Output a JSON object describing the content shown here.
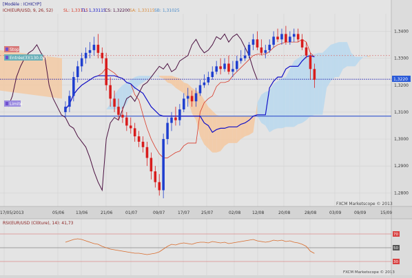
{
  "header": {
    "model_label": "[Modèle : ICHICYP]",
    "indicator_label": "ICH(EUR/USD, 9, 26, 52)",
    "sl": "SL: 1,33115",
    "tl": "TL: 1,33115",
    "cs": "CS: 1,32200",
    "sa": "SA: 1,33115",
    "sb": "SB: 1,31025"
  },
  "badges": {
    "stop": "Stop",
    "entry": "Entrée(3)(130.00)",
    "limit": "Limite",
    "current_price": "1,3220"
  },
  "price_axis": {
    "ticks": [
      "1,3400",
      "1,3300",
      "1,3200",
      "1,3100",
      "1,3000",
      "1,2900",
      "1,2800"
    ],
    "tick_values": [
      1.34,
      1.33,
      1.32,
      1.31,
      1.3,
      1.29,
      1.28
    ]
  },
  "date_axis": {
    "ticks": [
      "17/05/2013",
      "05/06",
      "13/06",
      "21/06",
      "01/07",
      "09/07",
      "17/07",
      "25/07",
      "02/08",
      "12/08",
      "20/08",
      "28/08",
      "03/09",
      "09/09",
      "15/09"
    ]
  },
  "footer": {
    "watermark_main": "FXCM Marketscope © 2013",
    "watermark_sub": "FXCM Marketscope © 2013"
  },
  "rsi": {
    "label": "RSI(EUR/USD (Clôture), 14): 41,73",
    "ticks": [
      "70",
      "50",
      "30"
    ],
    "tick_values": [
      70,
      50,
      30
    ]
  },
  "colors": {
    "background": "#d6d6d6",
    "up_candle": "#1f3fcf",
    "down_candle": "#d81c1c",
    "cloud_bull": "#b8d8ee",
    "cloud_bear": "#f4c8a0",
    "tenkan": "#d83a2a",
    "kijun": "#1010c8",
    "chikou": "#4a1040",
    "stop_badge": "#d87a7a",
    "entry_badge": "#6ab0b8",
    "limit_badge": "#9a8ae0",
    "current_badge": "#2a5ad8"
  },
  "chart_data": [
    {
      "type": "candlestick",
      "title": "EUR/USD",
      "ylim": [
        1.276,
        1.346
      ],
      "x": [
        "05/06",
        "06/06",
        "07/06",
        "10/06",
        "11/06",
        "12/06",
        "13/06",
        "14/06",
        "17/06",
        "18/06",
        "19/06",
        "20/06",
        "21/06",
        "24/06",
        "25/06",
        "26/06",
        "27/06",
        "28/06",
        "01/07",
        "02/07",
        "03/07",
        "04/07",
        "05/07",
        "08/07",
        "09/07",
        "10/07",
        "11/07",
        "12/07",
        "15/07",
        "16/07",
        "17/07",
        "18/07",
        "19/07",
        "22/07",
        "23/07",
        "24/07",
        "25/07",
        "26/07",
        "29/07",
        "30/07",
        "31/07",
        "01/08",
        "02/08",
        "05/08",
        "06/08",
        "07/08",
        "08/08",
        "09/08",
        "12/08",
        "13/08",
        "14/08",
        "15/08",
        "16/08",
        "19/08",
        "20/08",
        "21/08",
        "22/08",
        "23/08",
        "26/08",
        "27/08",
        "28/08",
        "29/08"
      ],
      "open": [
        1.31,
        1.312,
        1.316,
        1.323,
        1.327,
        1.33,
        1.332,
        1.333,
        1.335,
        1.332,
        1.33,
        1.32,
        1.315,
        1.312,
        1.309,
        1.308,
        1.305,
        1.304,
        1.301,
        1.299,
        1.297,
        1.293,
        1.288,
        1.284,
        1.281,
        1.3,
        1.306,
        1.308,
        1.307,
        1.311,
        1.315,
        1.316,
        1.314,
        1.317,
        1.32,
        1.321,
        1.323,
        1.325,
        1.327,
        1.326,
        1.328,
        1.325,
        1.326,
        1.329,
        1.33,
        1.331,
        1.335,
        1.337,
        1.334,
        1.332,
        1.333,
        1.335,
        1.338,
        1.337,
        1.339,
        1.336,
        1.338,
        1.339,
        1.337,
        1.334,
        1.331,
        1.326
      ],
      "high": [
        1.314,
        1.318,
        1.325,
        1.329,
        1.332,
        1.334,
        1.336,
        1.338,
        1.339,
        1.334,
        1.332,
        1.323,
        1.318,
        1.315,
        1.312,
        1.31,
        1.308,
        1.306,
        1.303,
        1.301,
        1.299,
        1.295,
        1.29,
        1.287,
        1.302,
        1.308,
        1.31,
        1.312,
        1.313,
        1.317,
        1.319,
        1.318,
        1.319,
        1.322,
        1.324,
        1.325,
        1.327,
        1.329,
        1.33,
        1.33,
        1.331,
        1.329,
        1.331,
        1.333,
        1.334,
        1.336,
        1.339,
        1.34,
        1.337,
        1.335,
        1.337,
        1.34,
        1.341,
        1.341,
        1.342,
        1.34,
        1.341,
        1.341,
        1.339,
        1.336,
        1.332,
        1.328
      ],
      "low": [
        1.308,
        1.31,
        1.314,
        1.321,
        1.325,
        1.328,
        1.33,
        1.331,
        1.33,
        1.328,
        1.318,
        1.312,
        1.31,
        1.307,
        1.306,
        1.303,
        1.302,
        1.299,
        1.297,
        1.295,
        1.29,
        1.285,
        1.282,
        1.279,
        1.278,
        1.298,
        1.303,
        1.305,
        1.305,
        1.31,
        1.312,
        1.312,
        1.312,
        1.316,
        1.319,
        1.32,
        1.322,
        1.324,
        1.324,
        1.325,
        1.324,
        1.323,
        1.325,
        1.328,
        1.329,
        1.33,
        1.333,
        1.333,
        1.331,
        1.33,
        1.332,
        1.334,
        1.336,
        1.335,
        1.335,
        1.335,
        1.336,
        1.336,
        1.333,
        1.33,
        1.322,
        1.319
      ],
      "close": [
        1.312,
        1.316,
        1.323,
        1.327,
        1.33,
        1.332,
        1.333,
        1.335,
        1.332,
        1.33,
        1.32,
        1.315,
        1.312,
        1.309,
        1.308,
        1.305,
        1.304,
        1.301,
        1.299,
        1.297,
        1.293,
        1.288,
        1.284,
        1.281,
        1.3,
        1.306,
        1.308,
        1.307,
        1.311,
        1.315,
        1.316,
        1.314,
        1.317,
        1.32,
        1.321,
        1.323,
        1.325,
        1.327,
        1.326,
        1.328,
        1.325,
        1.326,
        1.329,
        1.33,
        1.331,
        1.335,
        1.337,
        1.334,
        1.332,
        1.333,
        1.335,
        1.338,
        1.337,
        1.339,
        1.336,
        1.338,
        1.339,
        1.337,
        1.334,
        1.331,
        1.326,
        1.322
      ],
      "horizontal_lines": [
        {
          "name": "Stop",
          "value": 1.331,
          "color": "#d87a7a"
        },
        {
          "name": "Entrée",
          "value": 1.3222,
          "color": "#2020b0"
        },
        {
          "name": "Limite",
          "value": 1.3085,
          "color": "#4060d0"
        }
      ]
    },
    {
      "type": "line",
      "title": "RSI(EUR/USD (Clôture), 14)",
      "ylim": [
        20,
        80
      ],
      "reference_lines": [
        70,
        50,
        30
      ],
      "values": [
        58,
        60,
        62,
        63,
        62,
        60,
        58,
        56,
        55,
        52,
        50,
        48,
        47,
        46,
        45,
        44,
        43,
        42,
        42,
        41,
        40,
        41,
        42,
        44,
        48,
        52,
        55,
        54,
        56,
        57,
        56,
        55,
        57,
        58,
        58,
        57,
        59,
        58,
        57,
        58,
        56,
        57,
        58,
        59,
        60,
        61,
        62,
        60,
        59,
        58,
        59,
        61,
        60,
        61,
        59,
        60,
        58,
        57,
        55,
        52,
        45,
        41.73
      ]
    }
  ]
}
